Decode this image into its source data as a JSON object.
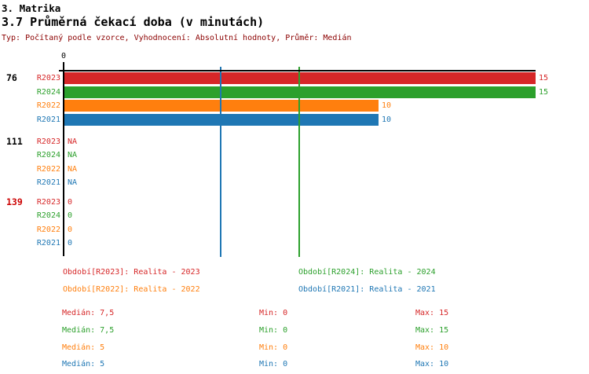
{
  "header": {
    "section_title": "3. Matrika",
    "chart_title": "3.7 Průměrná čekací doba (v minutách)",
    "meta": "Typ: Počítaný podle vzorce, Vyhodnocení: Absolutní hodnoty, Průměr: Medián"
  },
  "colors": {
    "R2023": "#d62728",
    "R2024": "#2ca02c",
    "R2022": "#ff7f0e",
    "R2021": "#1f77b4",
    "meta": "#8b0000",
    "alert": "#cc0000",
    "axis": "#000000"
  },
  "chart_data": {
    "type": "bar",
    "orientation": "horizontal",
    "value_axis": {
      "origin_label": "0",
      "min": 0,
      "max": 15,
      "gridlines": false
    },
    "series_order": [
      "R2023",
      "R2024",
      "R2022",
      "R2021"
    ],
    "groups": [
      {
        "label": "76",
        "label_color": "#000000",
        "rows": [
          {
            "series": "R2023",
            "value": 15,
            "display": "15"
          },
          {
            "series": "R2024",
            "value": 15,
            "display": "15"
          },
          {
            "series": "R2022",
            "value": 10,
            "display": "10"
          },
          {
            "series": "R2021",
            "value": 10,
            "display": "10"
          }
        ]
      },
      {
        "label": "111",
        "label_color": "#000000",
        "rows": [
          {
            "series": "R2023",
            "value": null,
            "display": "NA"
          },
          {
            "series": "R2024",
            "value": null,
            "display": "NA"
          },
          {
            "series": "R2022",
            "value": null,
            "display": "NA"
          },
          {
            "series": "R2021",
            "value": null,
            "display": "NA"
          }
        ]
      },
      {
        "label": "139",
        "label_color": "#cc0000",
        "rows": [
          {
            "series": "R2023",
            "value": 0,
            "display": "0"
          },
          {
            "series": "R2024",
            "value": 0,
            "display": "0"
          },
          {
            "series": "R2022",
            "value": 0,
            "display": "0"
          },
          {
            "series": "R2021",
            "value": 0,
            "display": "0"
          }
        ]
      }
    ],
    "reference_lines": [
      {
        "series": "R2024",
        "value": 7.5
      },
      {
        "series": "R2021",
        "value": 5
      }
    ]
  },
  "legend": {
    "items": [
      {
        "series": "R2023",
        "text": "Období[R2023]: Realita - 2023"
      },
      {
        "series": "R2024",
        "text": "Období[R2024]: Realita - 2024"
      },
      {
        "series": "R2022",
        "text": "Období[R2022]: Realita - 2022"
      },
      {
        "series": "R2021",
        "text": "Období[R2021]: Realita - 2021"
      }
    ]
  },
  "stats": {
    "rows": [
      {
        "series": "R2023",
        "median": "Medián: 7,5",
        "min": "Min: 0",
        "max": "Max: 15"
      },
      {
        "series": "R2024",
        "median": "Medián: 7,5",
        "min": "Min: 0",
        "max": "Max: 15"
      },
      {
        "series": "R2022",
        "median": "Medián: 5",
        "min": "Min: 0",
        "max": "Max: 10"
      },
      {
        "series": "R2021",
        "median": "Medián: 5",
        "min": "Min: 0",
        "max": "Max: 10"
      }
    ]
  }
}
